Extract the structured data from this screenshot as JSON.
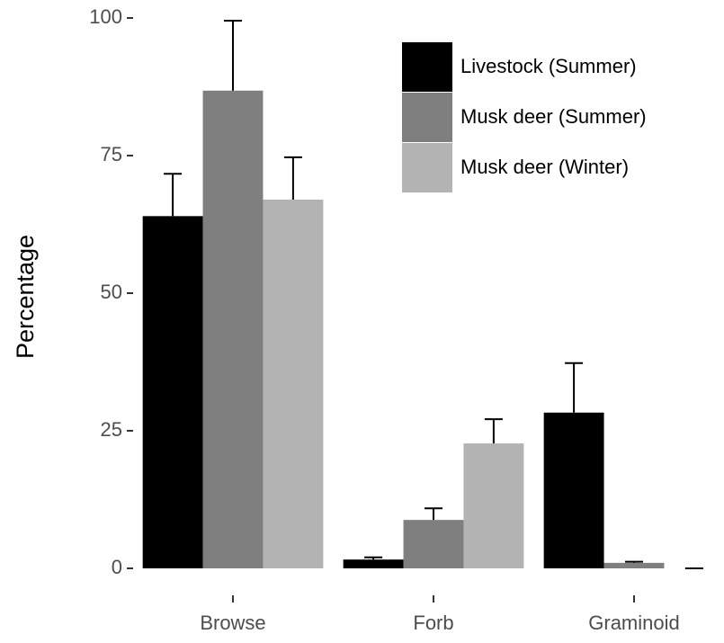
{
  "chart_data": {
    "type": "bar",
    "y_label": "Percentage",
    "categories": [
      "Browse",
      "Forb",
      "Graminoid"
    ],
    "series": [
      {
        "name": "Livestock (Summer)",
        "color": "#000000",
        "values": [
          64,
          1.6,
          28.3
        ],
        "errors": [
          7.7,
          0.4,
          9
        ]
      },
      {
        "name": "Musk deer (Summer)",
        "color": "#7f7f7f",
        "values": [
          86.8,
          8.8,
          1
        ],
        "errors": [
          12.7,
          2.1,
          0.2
        ]
      },
      {
        "name": "Musk deer (Winter)",
        "color": "#b3b3b3",
        "values": [
          67,
          22.7,
          0
        ],
        "errors": [
          7.7,
          4.4,
          0
        ]
      }
    ],
    "ylim": [
      0,
      100
    ],
    "yticks": [
      0,
      25,
      50,
      75,
      100
    ],
    "legend": "top-right"
  }
}
